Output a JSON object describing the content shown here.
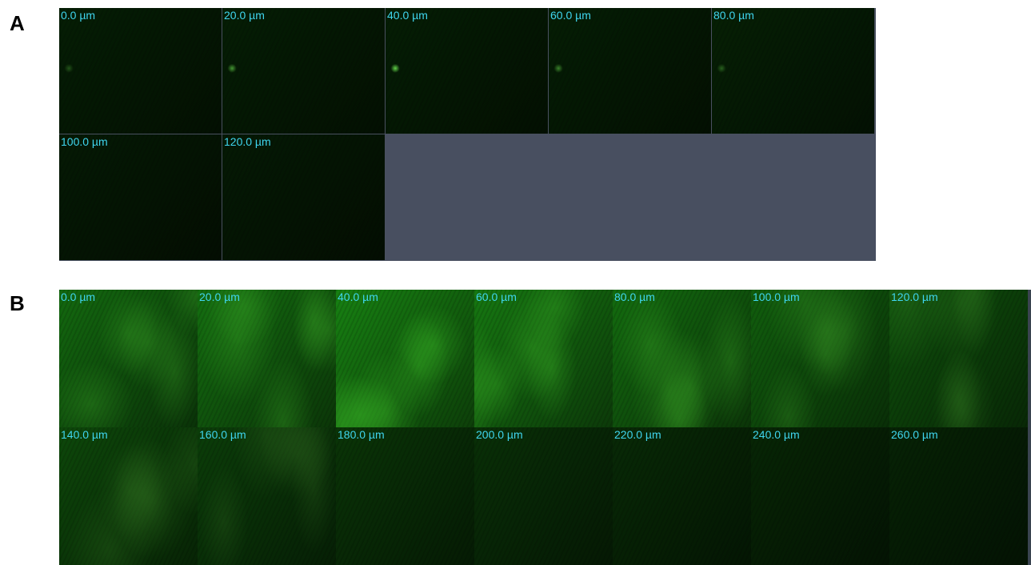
{
  "panel_a": {
    "letter": "A",
    "tiles": [
      {
        "label": "0.0 µm",
        "level": 0.12,
        "spot": 0.25
      },
      {
        "label": "20.0 µm",
        "level": 0.12,
        "spot": 0.55
      },
      {
        "label": "40.0 µm",
        "level": 0.12,
        "spot": 0.8
      },
      {
        "label": "60.0 µm",
        "level": 0.12,
        "spot": 0.45
      },
      {
        "label": "80.0 µm",
        "level": 0.13,
        "spot": 0.3
      },
      {
        "label": "100.0 µm",
        "level": 0.09,
        "spot": 0
      },
      {
        "label": "120.0 µm",
        "level": 0.09,
        "spot": 0
      }
    ]
  },
  "panel_b": {
    "letter": "B",
    "tiles": [
      {
        "label": "0.0 µm",
        "level": 0.62
      },
      {
        "label": "20.0 µm",
        "level": 0.66
      },
      {
        "label": "40.0 µm",
        "level": 0.78
      },
      {
        "label": "60.0 µm",
        "level": 0.72
      },
      {
        "label": "80.0 µm",
        "level": 0.64
      },
      {
        "label": "100.0 µm",
        "level": 0.55
      },
      {
        "label": "120.0 µm",
        "level": 0.45
      },
      {
        "label": "140.0 µm",
        "level": 0.4
      },
      {
        "label": "160.0 µm",
        "level": 0.33
      },
      {
        "label": "180.0 µm",
        "level": 0.27
      },
      {
        "label": "200.0 µm",
        "level": 0.24
      },
      {
        "label": "220.0 µm",
        "level": 0.2
      },
      {
        "label": "240.0 µm",
        "level": 0.17
      },
      {
        "label": "260.0 µm",
        "level": 0.15
      }
    ]
  }
}
